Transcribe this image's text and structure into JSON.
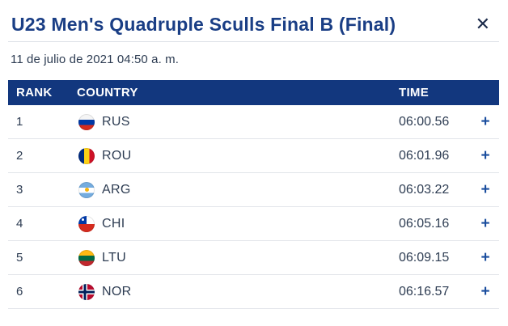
{
  "modal": {
    "title": "U23 Men's Quadruple Sculls Final B (Final)",
    "date": "11 de julio de 2021 04:50 a. m.",
    "close_icon": "✕"
  },
  "table": {
    "headers": {
      "rank": "RANK",
      "country": "COUNTRY",
      "time": "TIME"
    },
    "expand_symbol": "+",
    "rows": [
      {
        "rank": "1",
        "country": "RUS",
        "flag": "russia-flag",
        "time": "06:00.56",
        "expand": "+"
      },
      {
        "rank": "2",
        "country": "ROU",
        "flag": "romania-flag",
        "time": "06:01.96",
        "expand": "+"
      },
      {
        "rank": "3",
        "country": "ARG",
        "flag": "argentina-flag",
        "time": "06:03.22",
        "expand": "+"
      },
      {
        "rank": "4",
        "country": "CHI",
        "flag": "chile-flag",
        "time": "06:05.16",
        "expand": "+"
      },
      {
        "rank": "5",
        "country": "LTU",
        "flag": "lithuania-flag",
        "time": "06:09.15",
        "expand": "+"
      },
      {
        "rank": "6",
        "country": "NOR",
        "flag": "norway-flag",
        "time": "06:16.57",
        "expand": "+"
      }
    ]
  },
  "colors": {
    "header_bg": "#12377e",
    "title_blue": "#1a3e85",
    "expand_blue": "#1a4d9e",
    "body_text": "#2d3c52",
    "row_divider": "#e2e5ea"
  }
}
